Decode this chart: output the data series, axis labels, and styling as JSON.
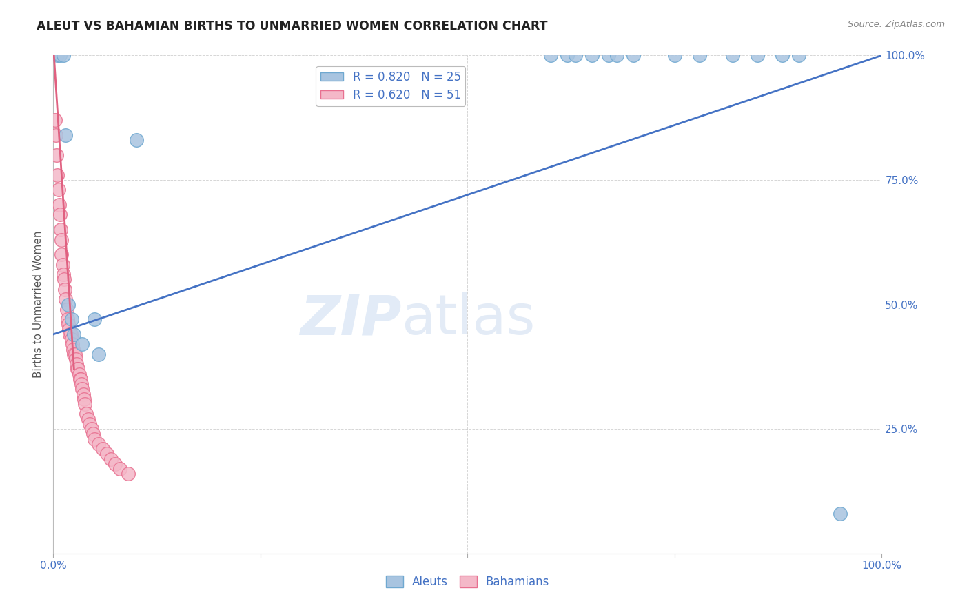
{
  "title": "ALEUT VS BAHAMIAN BIRTHS TO UNMARRIED WOMEN CORRELATION CHART",
  "source": "Source: ZipAtlas.com",
  "ylabel": "Births to Unmarried Women",
  "watermark": "ZIPatlas",
  "aleut_R": 0.82,
  "aleut_N": 25,
  "bahamian_R": 0.62,
  "bahamian_N": 51,
  "xmin": 0.0,
  "xmax": 1.0,
  "ymin": 0.0,
  "ymax": 1.0,
  "xticks": [
    0.0,
    0.25,
    0.5,
    0.75,
    1.0
  ],
  "yticks": [
    0.0,
    0.25,
    0.5,
    0.75,
    1.0
  ],
  "xticklabels": [
    "0.0%",
    "",
    "",
    "",
    "100.0%"
  ],
  "yticklabels": [
    "",
    "25.0%",
    "50.0%",
    "75.0%",
    "100.0%"
  ],
  "aleut_color": "#a8c4e0",
  "aleut_edge": "#6fa8d0",
  "bahamian_color": "#f4b8c8",
  "bahamian_edge": "#e87090",
  "blue_line_color": "#4472c4",
  "pink_line_color": "#e06080",
  "aleut_x": [
    0.005,
    0.008,
    0.012,
    0.015,
    0.018,
    0.022,
    0.025,
    0.035,
    0.05,
    0.055,
    0.6,
    0.62,
    0.63,
    0.65,
    0.67,
    0.68,
    0.7,
    0.75,
    0.78,
    0.82,
    0.85,
    0.88,
    0.9,
    0.1,
    0.95
  ],
  "aleut_y": [
    1.0,
    1.0,
    1.0,
    0.84,
    0.5,
    0.47,
    0.44,
    0.42,
    0.47,
    0.4,
    1.0,
    1.0,
    1.0,
    1.0,
    1.0,
    1.0,
    1.0,
    1.0,
    1.0,
    1.0,
    1.0,
    1.0,
    1.0,
    0.83,
    0.08
  ],
  "bahamian_x": [
    0.002,
    0.003,
    0.004,
    0.005,
    0.006,
    0.007,
    0.008,
    0.009,
    0.01,
    0.01,
    0.011,
    0.012,
    0.013,
    0.014,
    0.015,
    0.016,
    0.017,
    0.018,
    0.019,
    0.02,
    0.021,
    0.022,
    0.023,
    0.024,
    0.025,
    0.026,
    0.027,
    0.028,
    0.029,
    0.03,
    0.031,
    0.032,
    0.033,
    0.034,
    0.035,
    0.036,
    0.037,
    0.038,
    0.04,
    0.042,
    0.044,
    0.046,
    0.048,
    0.05,
    0.055,
    0.06,
    0.065,
    0.07,
    0.075,
    0.08,
    0.09
  ],
  "bahamian_y": [
    0.87,
    0.84,
    0.8,
    0.76,
    0.73,
    0.7,
    0.68,
    0.65,
    0.63,
    0.6,
    0.58,
    0.56,
    0.55,
    0.53,
    0.51,
    0.49,
    0.47,
    0.46,
    0.45,
    0.44,
    0.44,
    0.43,
    0.42,
    0.41,
    0.4,
    0.4,
    0.39,
    0.38,
    0.37,
    0.37,
    0.36,
    0.35,
    0.35,
    0.34,
    0.33,
    0.32,
    0.31,
    0.3,
    0.28,
    0.27,
    0.26,
    0.25,
    0.24,
    0.23,
    0.22,
    0.21,
    0.2,
    0.19,
    0.18,
    0.17,
    0.16
  ],
  "background_color": "#ffffff",
  "grid_color": "#cccccc",
  "title_color": "#222222",
  "axis_tick_color": "#4472c4",
  "blue_line_x": [
    0.0,
    1.0
  ],
  "blue_line_y": [
    0.44,
    1.0
  ],
  "pink_line_x": [
    0.0,
    0.025
  ],
  "pink_line_y": [
    1.02,
    0.37
  ]
}
